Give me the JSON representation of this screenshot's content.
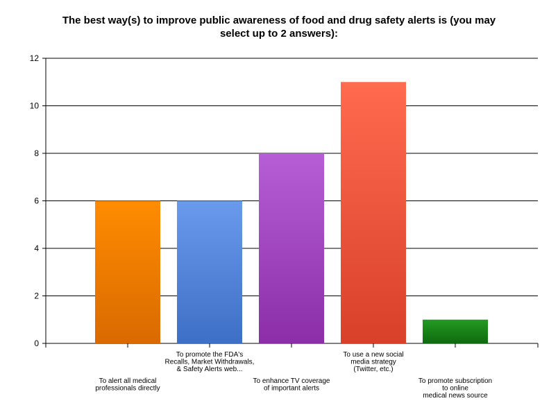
{
  "chart_data": {
    "type": "bar",
    "title": "The best way(s) to improve public awareness of food and drug safety alerts is (you may select up to 2 answers):",
    "title_lines": [
      "The best way(s) to improve public awareness of food and drug safety alerts is (you may",
      "select up to 2 answers):"
    ],
    "xlabel": "",
    "ylabel": "",
    "ylim": [
      0,
      12
    ],
    "yticks": [
      "0",
      "2",
      "4",
      "6",
      "8",
      "10",
      "12"
    ],
    "grid": true,
    "legend": "none",
    "categories": [
      "To alert all medical professionals directly",
      "To promote the FDA's Recalls, Market Withdrawals, & Safety Alerts web...",
      "To enhance TV coverage of important alerts",
      "To use a new social media strategy (Twitter, etc.)",
      "To promote subscription to online medical news source"
    ],
    "category_label_lines": [
      [
        "To alert all medical",
        "professionals directly"
      ],
      [
        "To promote the FDA's",
        "Recalls, Market Withdrawals,",
        "& Safety Alerts web..."
      ],
      [
        "To enhance TV coverage",
        "of important alerts"
      ],
      [
        "To use a new social",
        "media strategy",
        "(Twitter, etc.)"
      ],
      [
        "To promote subscription",
        "to online",
        "medical news source"
      ]
    ],
    "values": [
      6,
      6,
      8,
      11,
      1
    ],
    "colors": [
      [
        "#ff8c00",
        "#d96a00"
      ],
      [
        "#6a9aec",
        "#3d6fc6"
      ],
      [
        "#b65ed6",
        "#8b2ea8"
      ],
      [
        "#ff6b4f",
        "#d9402a"
      ],
      [
        "#239a23",
        "#0f6a0f"
      ]
    ]
  }
}
